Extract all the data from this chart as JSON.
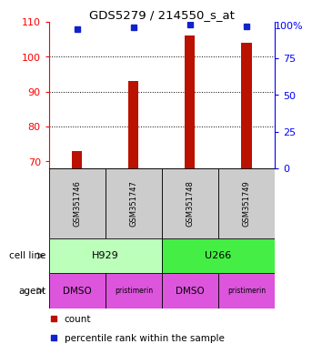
{
  "title": "GDS5279 / 214550_s_at",
  "samples": [
    "GSM351746",
    "GSM351747",
    "GSM351748",
    "GSM351749"
  ],
  "counts": [
    73,
    93,
    106,
    104
  ],
  "percentile_ranks_pct": [
    95,
    96,
    98,
    97
  ],
  "ylim_left": [
    68,
    110
  ],
  "ylim_right": [
    0,
    100
  ],
  "yticks_left": [
    70,
    80,
    90,
    100,
    110
  ],
  "yticks_right": [
    0,
    25,
    50,
    75
  ],
  "ytick_labels_right": [
    "0",
    "25",
    "50",
    "75"
  ],
  "right_top_label": "100%",
  "bar_color": "#bb1100",
  "dot_color": "#1122cc",
  "cell_lines": [
    "H929",
    "U266"
  ],
  "cell_line_colors": [
    "#bbffbb",
    "#44ee44"
  ],
  "cell_line_spans": [
    [
      0,
      2
    ],
    [
      2,
      4
    ]
  ],
  "agents": [
    "DMSO",
    "pristimerin",
    "DMSO",
    "pristimerin"
  ],
  "agent_color": "#dd55dd",
  "gsm_box_color": "#cccccc",
  "legend_count_color": "#bb1100",
  "legend_pct_color": "#1122cc",
  "bar_width": 0.18
}
